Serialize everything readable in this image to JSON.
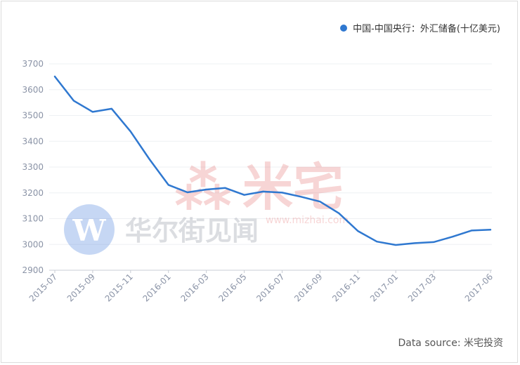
{
  "chart_data": {
    "type": "line",
    "legend": "中国-中国央行：外汇储备(十亿美元)",
    "legend_placement": "top-right",
    "series_color": "#2f78d0",
    "ylim": [
      2900,
      3700
    ],
    "y_ticks": [
      "3700",
      "3600",
      "3500",
      "3400",
      "3300",
      "3200",
      "3100",
      "3000",
      "2900"
    ],
    "x_tick_labels": [
      "2015-07",
      "2015-09",
      "2015-11",
      "2016-01",
      "2016-03",
      "2016-05",
      "2016-07",
      "2016-09",
      "2016-11",
      "2017-01",
      "2017-03",
      "2017-06"
    ],
    "x": [
      "2015-07",
      "2015-08",
      "2015-09",
      "2015-10",
      "2015-11",
      "2015-12",
      "2016-01",
      "2016-02",
      "2016-03",
      "2016-04",
      "2016-05",
      "2016-06",
      "2016-07",
      "2016-08",
      "2016-09",
      "2016-10",
      "2016-11",
      "2016-12",
      "2017-01",
      "2017-02",
      "2017-03",
      "2017-04",
      "2017-05",
      "2017-06"
    ],
    "values": [
      3651,
      3557,
      3514,
      3526,
      3438,
      3330,
      3231,
      3202,
      3213,
      3219,
      3192,
      3205,
      3201,
      3185,
      3166,
      3121,
      3052,
      3011,
      2998,
      3005,
      3009,
      3030,
      3054,
      3057
    ],
    "grid": true
  },
  "credit": "Data source: 米宅投资",
  "watermarks": [
    "华尔街见闻",
    "米宅",
    "www.mizhai.com"
  ]
}
